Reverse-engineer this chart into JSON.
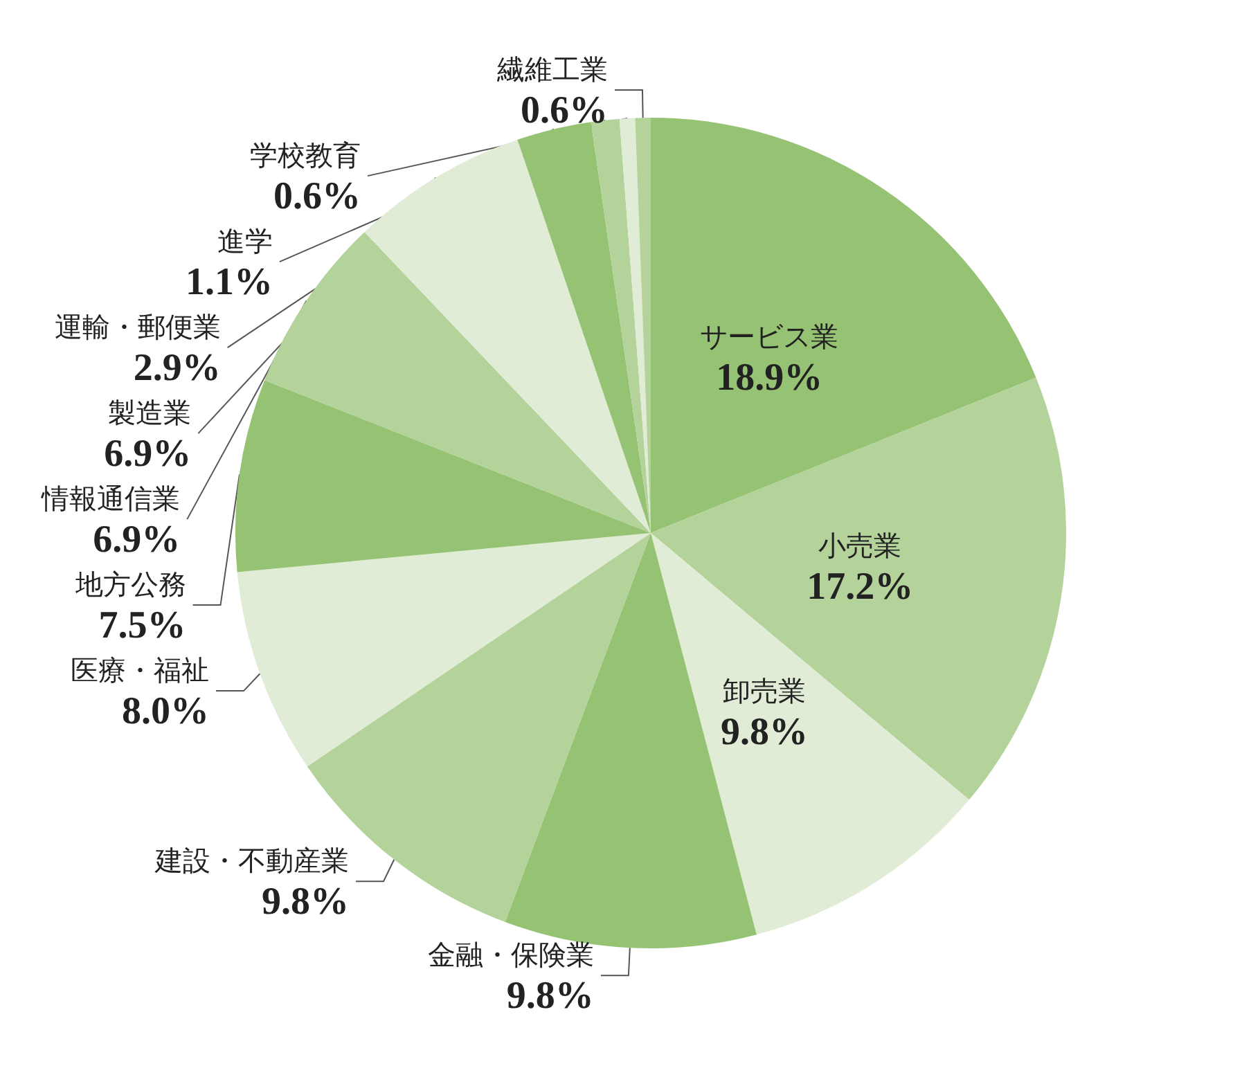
{
  "chart_data": {
    "type": "pie",
    "categories": [
      "サービス業",
      "小売業",
      "卸売業",
      "金融・保険業",
      "建設・不動産業",
      "医療・福祉",
      "地方公務",
      "情報通信業",
      "製造業",
      "運輸・郵便業",
      "進学",
      "学校教育",
      "繊維工業"
    ],
    "values": [
      18.9,
      17.2,
      9.8,
      9.8,
      9.8,
      8.0,
      7.5,
      6.9,
      6.9,
      2.9,
      1.1,
      0.6,
      0.6
    ],
    "value_labels": [
      "18.9%",
      "17.2%",
      "9.8%",
      "9.8%",
      "9.8%",
      "8.0%",
      "7.5%",
      "6.9%",
      "6.9%",
      "2.9%",
      "1.1%",
      "0.6%",
      "0.6%"
    ],
    "colors": [
      "#95c273",
      "#b3d39a",
      "#e0ecd5",
      "#95c273",
      "#b3d39a",
      "#e0ecd5",
      "#95c273",
      "#b3d39a",
      "#e0ecd5",
      "#95c273",
      "#b3d39a",
      "#e0ecd5",
      "#b3d39a"
    ],
    "legend": false
  }
}
